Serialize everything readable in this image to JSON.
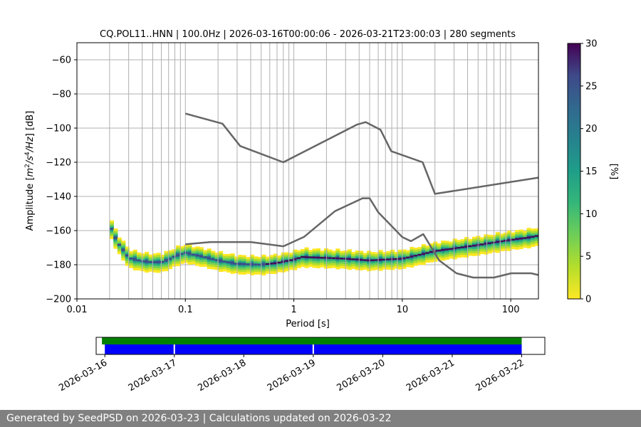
{
  "footer": {
    "text": "Generated by SeedPSD on 2026-03-23 | Calculations updated on 2026-03-22"
  },
  "chart_data": [
    {
      "type": "heatmap",
      "title": "CQ.POL11..HNN | 100.0Hz | 2026-03-16T00:00:06 - 2026-03-21T23:00:03 | 280 segments",
      "xlabel": "Period [s]",
      "ylabel": "Amplitude [m²/s⁴/Hz] [dB]",
      "xscale": "log",
      "xlim": [
        0.01,
        180
      ],
      "ylim": [
        -200,
        -50
      ],
      "xticks": [
        0.01,
        0.1,
        1,
        10,
        100
      ],
      "xtick_labels": [
        "0.01",
        "0.1",
        "1",
        "10",
        "100"
      ],
      "yticks": [
        -200,
        -180,
        -160,
        -140,
        -120,
        -100,
        -80,
        -60
      ],
      "ytick_labels": [
        "−200",
        "−180",
        "−160",
        "−140",
        "−120",
        "−100",
        "−80",
        "−60"
      ],
      "grid": true,
      "vertical_period_lines": [
        0.02,
        0.03,
        0.04,
        0.05,
        0.06,
        0.07,
        0.08,
        0.09,
        0.1,
        0.2,
        0.3,
        0.4,
        0.5,
        0.6,
        0.7,
        0.8,
        0.9,
        1,
        2,
        3,
        4,
        5,
        6,
        7,
        8,
        9,
        10,
        20,
        30,
        40,
        50,
        60,
        70,
        80,
        90,
        100
      ],
      "colorbar": {
        "label": "[%]",
        "range": [
          0,
          30
        ],
        "ticks": [
          0,
          5,
          10,
          15,
          20,
          25,
          30
        ],
        "tick_labels": [
          "0",
          "5",
          "10",
          "15",
          "20",
          "25",
          "30"
        ],
        "colormap": "viridis_r"
      },
      "psd_band": {
        "period_range": [
          0.02,
          180
        ],
        "mode": {
          "periods": [
            0.02,
            0.022,
            0.025,
            0.028,
            0.03,
            0.04,
            0.05,
            0.06,
            0.07,
            0.08,
            0.1,
            0.15,
            0.2,
            0.3,
            0.5,
            0.7,
            1,
            1.2,
            2,
            3,
            5,
            7,
            10,
            15,
            20,
            30,
            50,
            70,
            100,
            150,
            180
          ],
          "values": [
            -156,
            -163,
            -169,
            -173,
            -176,
            -178,
            -178.5,
            -178.5,
            -177,
            -175,
            -173,
            -175.5,
            -177.5,
            -179.5,
            -180,
            -179,
            -177,
            -175.5,
            -176,
            -176.5,
            -177.5,
            -177,
            -176.5,
            -174,
            -172,
            -170.5,
            -168.5,
            -167,
            -165.5,
            -164,
            -163
          ]
        }
      },
      "noise_models": [
        {
          "name": "upper",
          "periods": [
            0.1,
            0.22,
            0.32,
            0.8,
            3.8,
            4.6,
            6.3,
            7.9,
            15.4,
            20,
            180
          ],
          "values": [
            -91.5,
            -97.4,
            -110.5,
            -120,
            -98,
            -96.5,
            -101,
            -113.5,
            -120,
            -138.5,
            -129
          ]
        },
        {
          "name": "lower",
          "periods": [
            0.1,
            0.17,
            0.4,
            0.8,
            1.24,
            2.4,
            4.3,
            5.0,
            6.0,
            10.0,
            12.0,
            15.6,
            21.9,
            31.6,
            45.0,
            70.0,
            101.0,
            154.0,
            180
          ],
          "values": [
            -168,
            -166.7,
            -166.7,
            -169.2,
            -163.7,
            -148.6,
            -141.1,
            -141.1,
            -149.3,
            -163.8,
            -166.2,
            -162.1,
            -177.5,
            -185,
            -187.5,
            -187.5,
            -185,
            -185,
            -186
          ]
        }
      ]
    },
    {
      "type": "timeline",
      "xlim": [
        "2026-03-15T21:00",
        "2026-03-22T08:00"
      ],
      "xticks": [
        "2026-03-16",
        "2026-03-17",
        "2026-03-18",
        "2026-03-19",
        "2026-03-20",
        "2026-03-21",
        "2026-03-22"
      ],
      "bars": [
        {
          "name": "data",
          "color": "#008000",
          "start": "2026-03-15T23:00",
          "end": "2026-03-22T00:00"
        },
        {
          "name": "segments",
          "color": "#0000ff",
          "start": "2026-03-16T00:00",
          "end": "2026-03-22T00:00",
          "gaps": [
            "2026-03-17T00:00",
            "2026-03-19T00:00"
          ]
        }
      ]
    }
  ]
}
